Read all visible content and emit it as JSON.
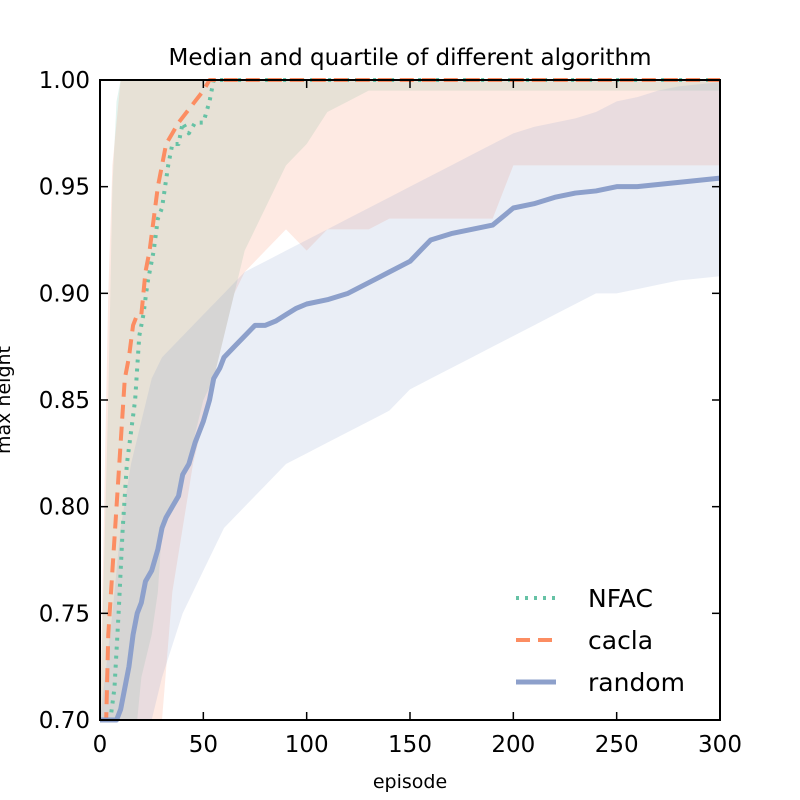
{
  "chart_data": {
    "type": "line",
    "title": "Median and quartile of different algorithm",
    "xlabel": "episode",
    "ylabel": "max height",
    "xlim": [
      0,
      300
    ],
    "ylim": [
      0.7,
      1.0
    ],
    "x_ticks": [
      0,
      50,
      100,
      150,
      200,
      250,
      300
    ],
    "y_ticks": [
      0.7,
      0.75,
      0.8,
      0.85,
      0.9,
      0.95,
      1.0
    ],
    "x_tick_labels": [
      "0",
      "50",
      "100",
      "150",
      "200",
      "250",
      "300"
    ],
    "y_tick_labels": [
      "0.70",
      "0.75",
      "0.80",
      "0.85",
      "0.90",
      "0.95",
      "1.00"
    ],
    "legend_position": "lower-right",
    "grid": false,
    "series": [
      {
        "name": "NFAC",
        "color": "#66c2a5",
        "style": "dotted",
        "median": [
          [
            0,
            0.7
          ],
          [
            5,
            0.7
          ],
          [
            7,
            0.715
          ],
          [
            9,
            0.75
          ],
          [
            11,
            0.79
          ],
          [
            13,
            0.82
          ],
          [
            15,
            0.835
          ],
          [
            17,
            0.85
          ],
          [
            19,
            0.88
          ],
          [
            21,
            0.89
          ],
          [
            23,
            0.905
          ],
          [
            26,
            0.92
          ],
          [
            28,
            0.935
          ],
          [
            30,
            0.94
          ],
          [
            33,
            0.96
          ],
          [
            35,
            0.97
          ],
          [
            38,
            0.97
          ],
          [
            40,
            0.98
          ],
          [
            43,
            0.975
          ],
          [
            46,
            0.98
          ],
          [
            50,
            0.98
          ],
          [
            53,
            0.99
          ],
          [
            55,
            1.0
          ],
          [
            300,
            1.0
          ]
        ],
        "q25": [
          [
            0,
            0.7
          ],
          [
            18,
            0.7
          ],
          [
            20,
            0.72
          ],
          [
            25,
            0.74
          ],
          [
            28,
            0.76
          ],
          [
            30,
            0.79
          ],
          [
            35,
            0.8
          ],
          [
            40,
            0.815
          ],
          [
            45,
            0.83
          ],
          [
            50,
            0.85
          ],
          [
            55,
            0.86
          ],
          [
            60,
            0.88
          ],
          [
            65,
            0.9
          ],
          [
            70,
            0.92
          ],
          [
            80,
            0.94
          ],
          [
            90,
            0.96
          ],
          [
            100,
            0.97
          ],
          [
            110,
            0.985
          ],
          [
            120,
            0.99
          ],
          [
            130,
            0.995
          ],
          [
            300,
            0.995
          ]
        ],
        "q75": [
          [
            0,
            0.7
          ],
          [
            4,
            0.85
          ],
          [
            6,
            0.95
          ],
          [
            8,
            0.99
          ],
          [
            10,
            1.0
          ],
          [
            300,
            1.0
          ]
        ]
      },
      {
        "name": "cacla",
        "color": "#fc8d62",
        "style": "dashed",
        "median": [
          [
            0,
            0.7
          ],
          [
            3,
            0.7
          ],
          [
            4,
            0.74
          ],
          [
            6,
            0.77
          ],
          [
            8,
            0.8
          ],
          [
            10,
            0.83
          ],
          [
            12,
            0.86
          ],
          [
            14,
            0.87
          ],
          [
            16,
            0.885
          ],
          [
            18,
            0.89
          ],
          [
            20,
            0.89
          ],
          [
            22,
            0.91
          ],
          [
            24,
            0.92
          ],
          [
            26,
            0.935
          ],
          [
            28,
            0.95
          ],
          [
            30,
            0.96
          ],
          [
            32,
            0.97
          ],
          [
            35,
            0.975
          ],
          [
            38,
            0.98
          ],
          [
            42,
            0.985
          ],
          [
            46,
            0.99
          ],
          [
            50,
            0.995
          ],
          [
            53,
            1.0
          ],
          [
            300,
            1.0
          ]
        ],
        "q25": [
          [
            0,
            0.7
          ],
          [
            30,
            0.7
          ],
          [
            35,
            0.76
          ],
          [
            40,
            0.79
          ],
          [
            45,
            0.82
          ],
          [
            50,
            0.84
          ],
          [
            55,
            0.86
          ],
          [
            60,
            0.88
          ],
          [
            65,
            0.9
          ],
          [
            70,
            0.91
          ],
          [
            80,
            0.92
          ],
          [
            90,
            0.93
          ],
          [
            100,
            0.92
          ],
          [
            110,
            0.93
          ],
          [
            120,
            0.93
          ],
          [
            130,
            0.93
          ],
          [
            140,
            0.935
          ],
          [
            150,
            0.935
          ],
          [
            160,
            0.935
          ],
          [
            170,
            0.935
          ],
          [
            190,
            0.935
          ],
          [
            200,
            0.96
          ],
          [
            250,
            0.96
          ],
          [
            280,
            0.96
          ],
          [
            300,
            0.96
          ]
        ],
        "q75": [
          [
            0,
            0.7
          ],
          [
            2,
            0.8
          ],
          [
            4,
            0.9
          ],
          [
            6,
            0.96
          ],
          [
            10,
            1.0
          ],
          [
            300,
            1.0
          ]
        ]
      },
      {
        "name": "random",
        "color": "#8da0cb",
        "style": "solid",
        "median": [
          [
            0,
            0.7
          ],
          [
            8,
            0.7
          ],
          [
            10,
            0.705
          ],
          [
            12,
            0.715
          ],
          [
            14,
            0.725
          ],
          [
            16,
            0.74
          ],
          [
            18,
            0.75
          ],
          [
            20,
            0.755
          ],
          [
            22,
            0.765
          ],
          [
            25,
            0.77
          ],
          [
            28,
            0.78
          ],
          [
            30,
            0.79
          ],
          [
            32,
            0.795
          ],
          [
            35,
            0.8
          ],
          [
            38,
            0.805
          ],
          [
            40,
            0.815
          ],
          [
            43,
            0.82
          ],
          [
            46,
            0.83
          ],
          [
            50,
            0.84
          ],
          [
            53,
            0.85
          ],
          [
            55,
            0.86
          ],
          [
            58,
            0.865
          ],
          [
            60,
            0.87
          ],
          [
            65,
            0.875
          ],
          [
            70,
            0.88
          ],
          [
            75,
            0.885
          ],
          [
            80,
            0.885
          ],
          [
            85,
            0.887
          ],
          [
            90,
            0.89
          ],
          [
            95,
            0.893
          ],
          [
            100,
            0.895
          ],
          [
            110,
            0.897
          ],
          [
            120,
            0.9
          ],
          [
            130,
            0.905
          ],
          [
            140,
            0.91
          ],
          [
            150,
            0.915
          ],
          [
            155,
            0.92
          ],
          [
            160,
            0.925
          ],
          [
            170,
            0.928
          ],
          [
            180,
            0.93
          ],
          [
            190,
            0.932
          ],
          [
            200,
            0.94
          ],
          [
            210,
            0.942
          ],
          [
            220,
            0.945
          ],
          [
            230,
            0.947
          ],
          [
            240,
            0.948
          ],
          [
            250,
            0.95
          ],
          [
            260,
            0.95
          ],
          [
            270,
            0.951
          ],
          [
            280,
            0.952
          ],
          [
            290,
            0.953
          ],
          [
            300,
            0.954
          ]
        ],
        "q25": [
          [
            0,
            0.7
          ],
          [
            25,
            0.7
          ],
          [
            30,
            0.72
          ],
          [
            40,
            0.75
          ],
          [
            50,
            0.77
          ],
          [
            60,
            0.79
          ],
          [
            70,
            0.8
          ],
          [
            80,
            0.81
          ],
          [
            90,
            0.82
          ],
          [
            100,
            0.825
          ],
          [
            110,
            0.83
          ],
          [
            120,
            0.835
          ],
          [
            130,
            0.84
          ],
          [
            140,
            0.845
          ],
          [
            150,
            0.855
          ],
          [
            160,
            0.86
          ],
          [
            170,
            0.865
          ],
          [
            180,
            0.87
          ],
          [
            190,
            0.875
          ],
          [
            200,
            0.88
          ],
          [
            210,
            0.885
          ],
          [
            220,
            0.89
          ],
          [
            230,
            0.895
          ],
          [
            240,
            0.9
          ],
          [
            250,
            0.9
          ],
          [
            260,
            0.902
          ],
          [
            270,
            0.904
          ],
          [
            280,
            0.906
          ],
          [
            290,
            0.907
          ],
          [
            300,
            0.908
          ]
        ],
        "q75": [
          [
            0,
            0.7
          ],
          [
            6,
            0.75
          ],
          [
            10,
            0.79
          ],
          [
            15,
            0.82
          ],
          [
            20,
            0.84
          ],
          [
            25,
            0.86
          ],
          [
            30,
            0.87
          ],
          [
            40,
            0.88
          ],
          [
            50,
            0.89
          ],
          [
            60,
            0.9
          ],
          [
            70,
            0.91
          ],
          [
            80,
            0.915
          ],
          [
            90,
            0.92
          ],
          [
            100,
            0.925
          ],
          [
            110,
            0.93
          ],
          [
            120,
            0.935
          ],
          [
            130,
            0.94
          ],
          [
            140,
            0.945
          ],
          [
            150,
            0.95
          ],
          [
            160,
            0.955
          ],
          [
            170,
            0.96
          ],
          [
            180,
            0.965
          ],
          [
            190,
            0.97
          ],
          [
            200,
            0.975
          ],
          [
            210,
            0.978
          ],
          [
            220,
            0.98
          ],
          [
            230,
            0.982
          ],
          [
            240,
            0.985
          ],
          [
            250,
            0.99
          ],
          [
            260,
            0.992
          ],
          [
            270,
            0.995
          ],
          [
            280,
            0.997
          ],
          [
            290,
            0.998
          ],
          [
            300,
            0.999
          ]
        ]
      }
    ]
  }
}
